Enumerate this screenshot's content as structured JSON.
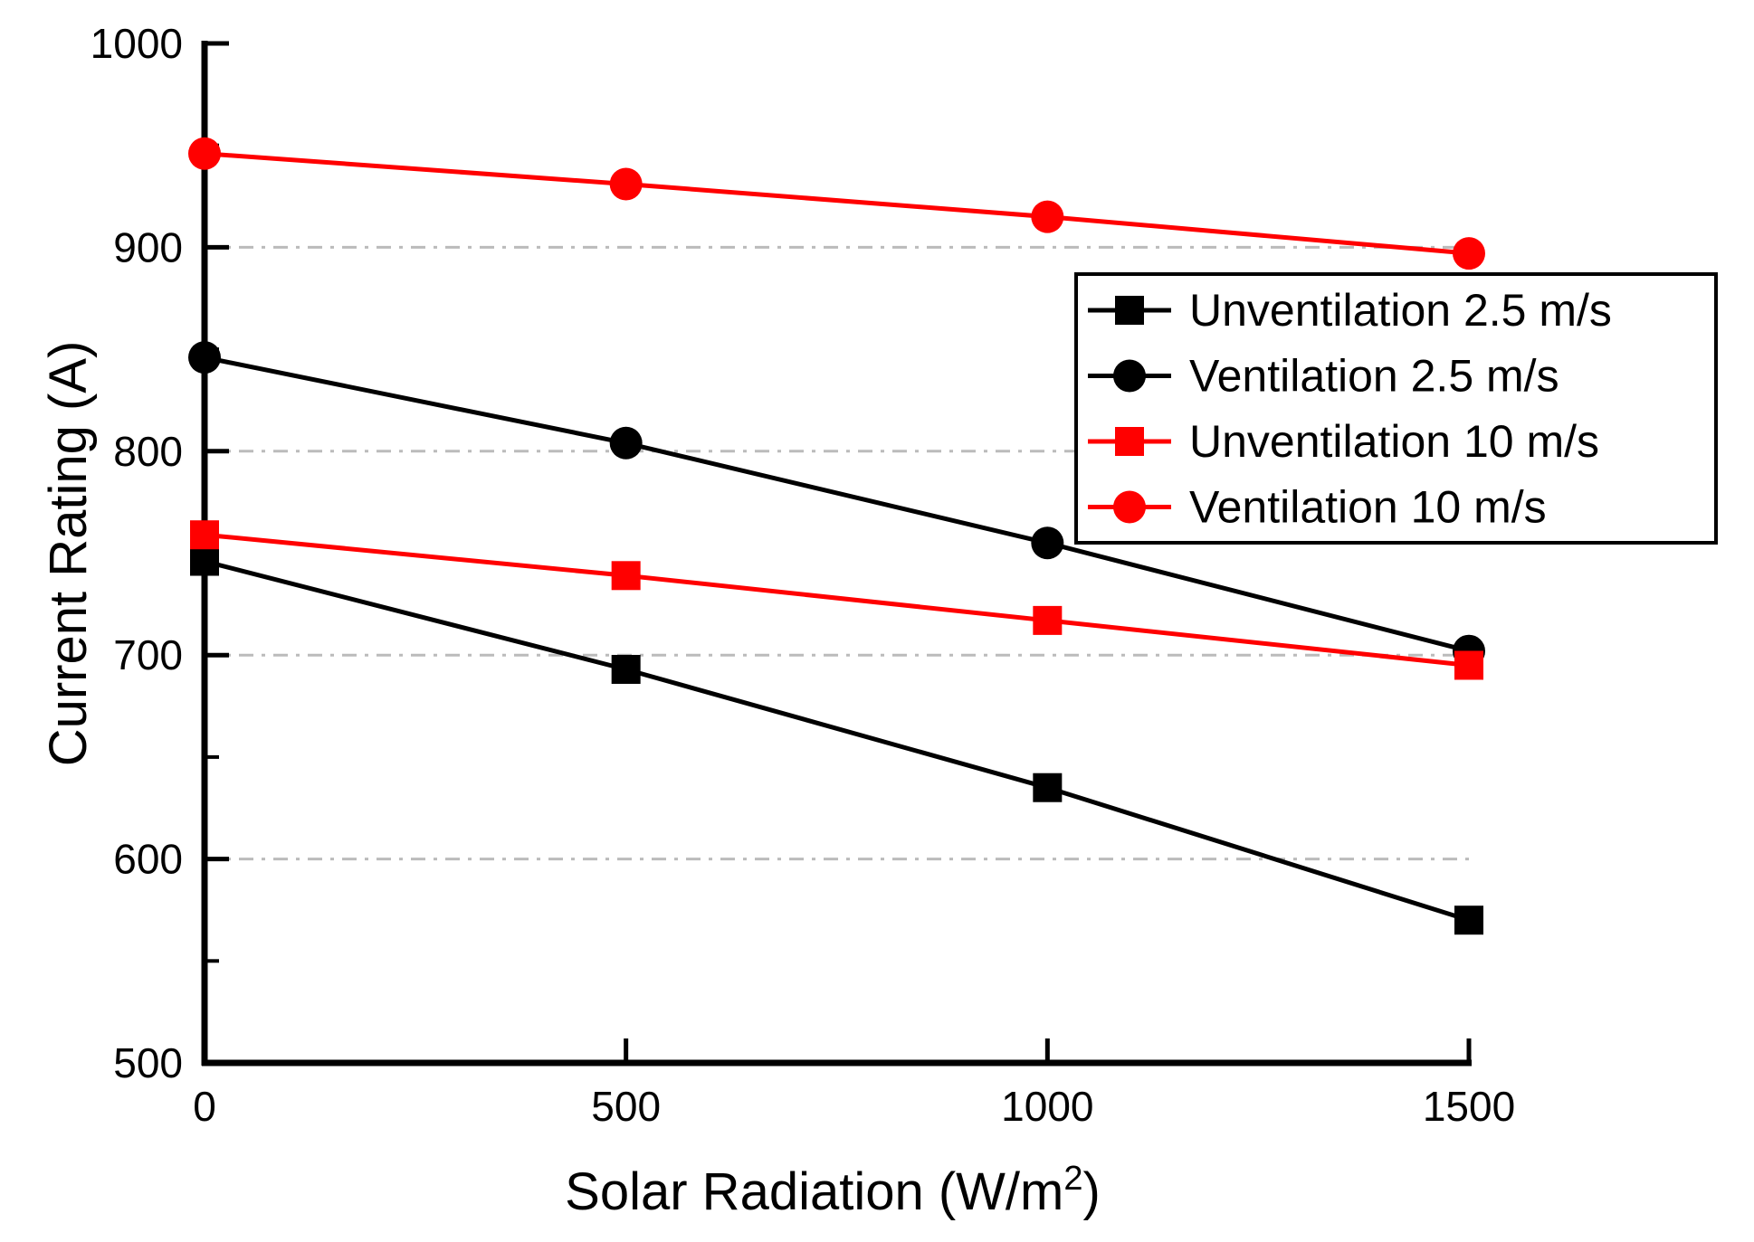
{
  "chart_data": {
    "type": "line",
    "title": "",
    "xlabel": "Solar Radiation (W/m²)",
    "xlabel_parts": {
      "pre": "Solar Radiation (W/m",
      "sup": "2",
      "post": ")"
    },
    "ylabel": "Current Rating (A)",
    "x": [
      0,
      500,
      1000,
      1500
    ],
    "xlim": [
      0,
      1500
    ],
    "ylim": [
      500,
      1000
    ],
    "xticks": [
      "0",
      "500",
      "1000",
      "1500"
    ],
    "xtick_values": [
      0,
      500,
      1000,
      1500
    ],
    "yticks": [
      "500",
      "600",
      "700",
      "800",
      "900",
      "1000"
    ],
    "ytick_values": [
      500,
      600,
      700,
      800,
      900,
      1000
    ],
    "y_minor_tick_values": [
      550,
      650,
      750,
      850,
      950
    ],
    "gridlines_at": [
      600,
      700,
      800,
      900
    ],
    "grid_on": true,
    "grid_color": "#bbbbbb",
    "axis_color": "#000000",
    "background_color": "#ffffff",
    "legend_position": "upper-right",
    "series": [
      {
        "name": "Unventilation 2.5 m/s",
        "color": "#000000",
        "marker": "square",
        "values": [
          746,
          693,
          635,
          570
        ]
      },
      {
        "name": "Ventilation 2.5 m/s",
        "color": "#000000",
        "marker": "circle",
        "values": [
          846,
          804,
          755,
          702
        ]
      },
      {
        "name": "Unventilation 10 m/s",
        "color": "#ff0000",
        "marker": "square",
        "values": [
          759,
          739,
          717,
          695
        ]
      },
      {
        "name": "Ventilation 10 m/s",
        "color": "#ff0000",
        "marker": "circle",
        "values": [
          946,
          931,
          915,
          897
        ]
      }
    ]
  }
}
